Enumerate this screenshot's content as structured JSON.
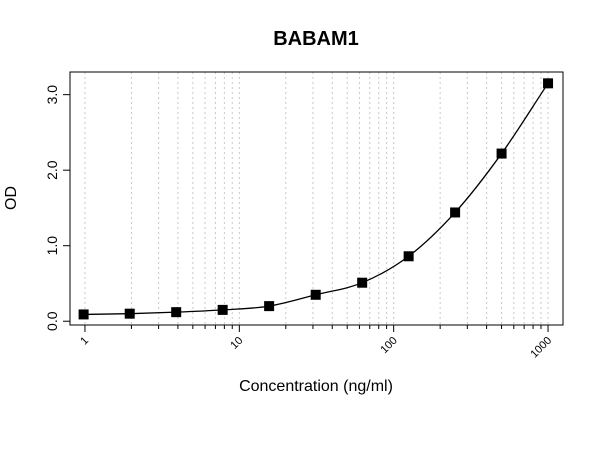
{
  "chart_data": {
    "type": "scatter",
    "title": "BABAM1",
    "xlabel": "Concentration (ng/ml)",
    "ylabel": "OD",
    "x_scale": "log",
    "xlim": [
      0.8,
      1250
    ],
    "ylim": [
      -0.05,
      3.3
    ],
    "x_ticks": [
      1,
      10,
      100,
      1000
    ],
    "x_tick_labels": [
      "1",
      "10",
      "100",
      "1000"
    ],
    "y_ticks": [
      0.0,
      1.0,
      2.0,
      3.0
    ],
    "y_tick_labels": [
      "0.0",
      "1.0",
      "2.0",
      "3.0"
    ],
    "grid": "vertical dotted log-minor",
    "series": [
      {
        "x": [
          0.98,
          1.95,
          3.9,
          7.8,
          15.6,
          31.25,
          62.5,
          125,
          250,
          500,
          1000
        ],
        "y": [
          0.09,
          0.1,
          0.12,
          0.15,
          0.2,
          0.35,
          0.51,
          0.86,
          1.44,
          2.22,
          3.15
        ],
        "marker": "square",
        "line": "smooth-fit"
      }
    ]
  }
}
